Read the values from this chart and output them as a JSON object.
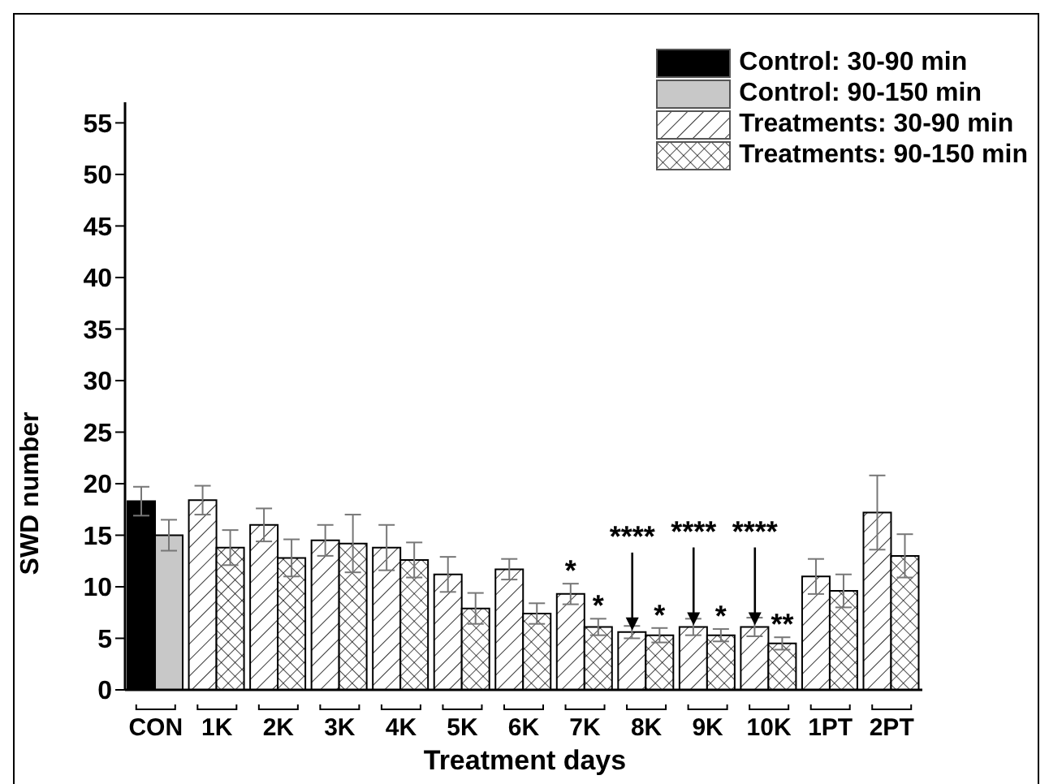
{
  "chart_data": {
    "type": "bar",
    "xlabel": "Treatment days",
    "ylabel": "SWD number",
    "categories": [
      "CON",
      "1K",
      "2K",
      "3K",
      "4K",
      "5K",
      "6K",
      "7K",
      "8K",
      "9K",
      "10K",
      "1PT",
      "2PT"
    ],
    "series": [
      {
        "name": "Control: 30-90 min",
        "color": "#000000",
        "values": [
          18.3,
          null,
          null,
          null,
          null,
          null,
          null,
          null,
          null,
          null,
          null,
          null,
          null
        ],
        "errors": [
          1.4,
          null,
          null,
          null,
          null,
          null,
          null,
          null,
          null,
          null,
          null,
          null,
          null
        ]
      },
      {
        "name": "Control: 90-150 min",
        "color": "#c8c8c8",
        "values": [
          15,
          null,
          null,
          null,
          null,
          null,
          null,
          null,
          null,
          null,
          null,
          null,
          null
        ],
        "errors": [
          1.5,
          null,
          null,
          null,
          null,
          null,
          null,
          null,
          null,
          null,
          null,
          null,
          null
        ]
      },
      {
        "name": "Treatments: 30-90 min",
        "color": "#000000",
        "values": [
          null,
          18.4,
          16,
          14.5,
          13.8,
          11.2,
          11.7,
          9.3,
          5.6,
          6.1,
          6.1,
          11,
          17.2
        ],
        "errors": [
          null,
          1.4,
          1.6,
          1.5,
          2.2,
          1.7,
          1,
          1,
          0.6,
          0.8,
          0.9,
          1.7,
          3.6
        ],
        "value_labels": [
          null,
          null,
          null,
          null,
          null,
          null,
          null,
          "*",
          null,
          null,
          null,
          null,
          null
        ]
      },
      {
        "name": "Treatments: 90-150 min",
        "color": "#000000",
        "values": [
          null,
          13.8,
          12.8,
          14.2,
          12.6,
          7.9,
          7.4,
          6.1,
          5.3,
          5.3,
          4.5,
          9.6,
          13
        ],
        "errors": [
          null,
          1.7,
          1.8,
          2.8,
          1.7,
          1.5,
          1,
          0.8,
          0.7,
          0.6,
          0.6,
          1.6,
          2.1
        ],
        "value_labels": [
          null,
          null,
          null,
          null,
          null,
          null,
          null,
          "*",
          "*",
          "*",
          "**",
          null,
          null
        ]
      }
    ],
    "annotations": [
      {
        "text": "****",
        "x": "8K",
        "y": 5.6
      },
      {
        "text": "****",
        "x": "9K",
        "y": 6.1
      },
      {
        "text": "****",
        "x": "10K",
        "y": 6.1
      }
    ],
    "ylim": [
      0,
      57
    ],
    "yticks": [
      0,
      5,
      10,
      15,
      20,
      25,
      30,
      35,
      40,
      45,
      50,
      55
    ],
    "grid": false,
    "legend": "top right"
  }
}
